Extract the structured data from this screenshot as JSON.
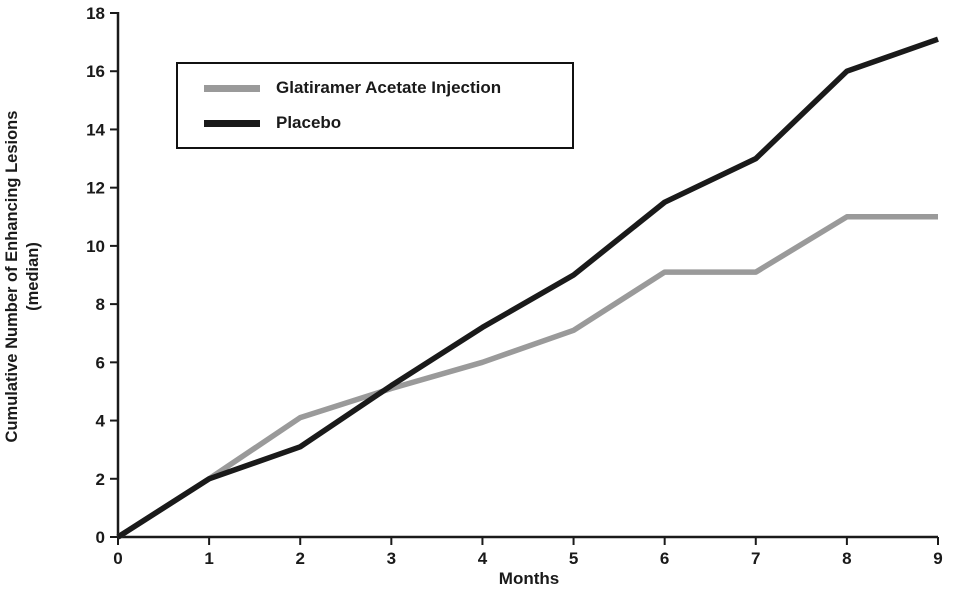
{
  "chart_data": {
    "type": "line",
    "x": [
      0,
      1,
      2,
      3,
      4,
      5,
      6,
      7,
      8,
      9
    ],
    "series": [
      {
        "name": "Glatiramer Acetate Injection",
        "color": "#9a9a9a",
        "values": [
          0,
          2,
          4.1,
          5.1,
          6,
          7.1,
          9.1,
          9.1,
          11,
          11
        ]
      },
      {
        "name": "Placebo",
        "color": "#1a1a1a",
        "values": [
          0,
          2,
          3.1,
          5.2,
          7.2,
          9,
          11.5,
          13,
          16,
          17.1
        ]
      }
    ],
    "xlabel": "Months",
    "ylabel": "Cumulative Number of Enhancing Lesions (median)",
    "ylabel_lines": [
      "Cumulative Number of Enhancing Lesions",
      "(median)"
    ],
    "xlim": [
      0,
      9
    ],
    "ylim": [
      0,
      18
    ],
    "xtick_step": 1,
    "ytick_step": 2,
    "grid": false,
    "legend_position": "upper-left",
    "axis_color": "#1a1a1a",
    "line_width": 5.5
  }
}
